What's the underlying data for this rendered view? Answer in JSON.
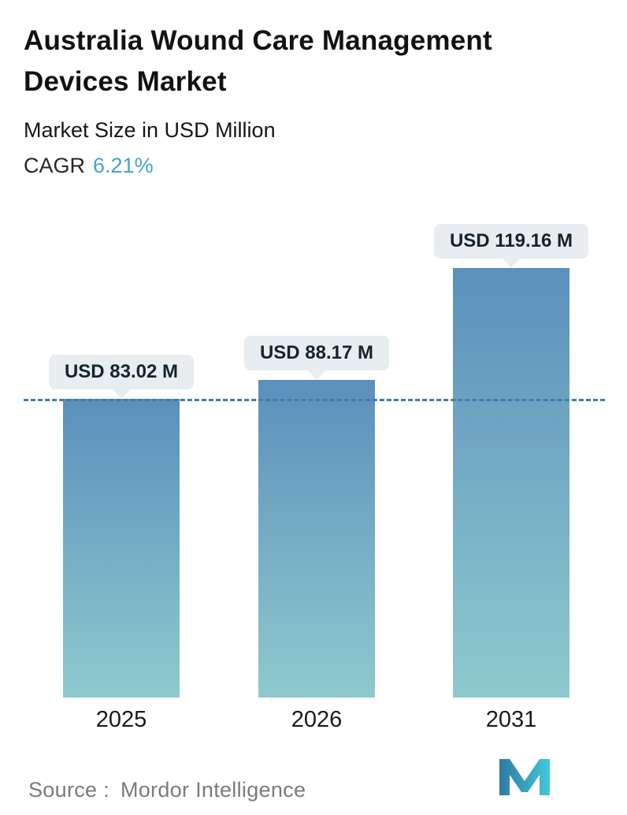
{
  "header": {
    "title_line1": "Australia Wound Care Management",
    "title_line2": "Devices Market",
    "subtitle": "Market Size in USD Million",
    "cagr_label": "CAGR",
    "cagr_value": "6.21%"
  },
  "chart_data": {
    "type": "bar",
    "title": "Australia Wound Care Management Devices Market",
    "subtitle": "Market Size in USD Million",
    "cagr": "6.21%",
    "categories": [
      "2025",
      "2026",
      "2031"
    ],
    "values": [
      83.02,
      88.17,
      119.16
    ],
    "value_labels": [
      "USD 83.02 M",
      "USD 88.17 M",
      "USD 119.16 M"
    ],
    "unit": "USD Million",
    "ylim": [
      0,
      130
    ],
    "grid": "off",
    "reference_line": "horizontal dashed line at 2025 value (83.02)",
    "colors": {
      "bar_gradient_top": "#5b90bc",
      "bar_gradient_bottom": "#8ec9ce",
      "dashed_line": "#3c7dad",
      "label_bubble_bg": "#e8edef",
      "cagr_accent": "#45a5c9"
    }
  },
  "footer": {
    "source_label": "Source :",
    "source_value": "Mordor Intelligence",
    "logo": "mordor-intelligence-logo"
  }
}
